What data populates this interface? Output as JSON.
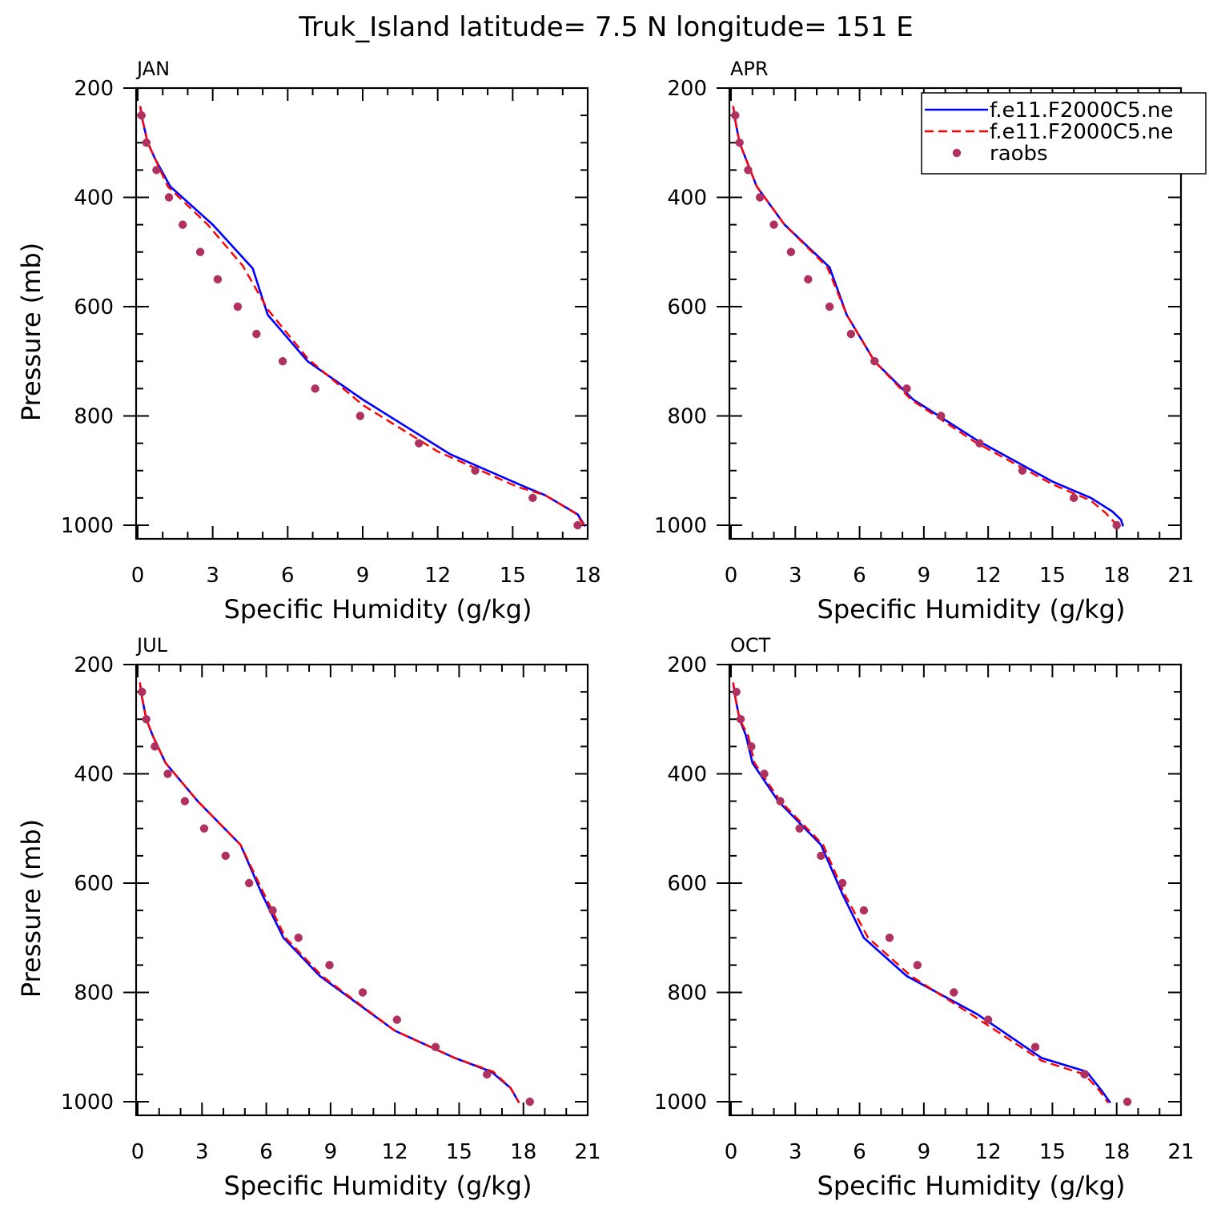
{
  "figure": {
    "title": "Truk_Island  latitude= 7.5 N longitude= 151 E"
  },
  "chart_data": [
    {
      "type": "line",
      "title": "JAN",
      "xlabel": "Specific Humidity (g/kg)",
      "ylabel": "Pressure (mb)",
      "xlim": [
        0,
        18
      ],
      "ylim": [
        1000,
        200
      ],
      "xticks": [
        0,
        3,
        6,
        9,
        12,
        15,
        18
      ],
      "yticks": [
        200,
        400,
        600,
        800,
        1000
      ],
      "y_reversed": true,
      "legend": false,
      "series": [
        {
          "name": "f.e11.F2000C5.ne",
          "style": "solid",
          "color": "#0000ff",
          "x": [
            0.1,
            0.2,
            0.4,
            0.7,
            1.3,
            3.0,
            4.6,
            5.2,
            6.8,
            9.0,
            12.5,
            15.5,
            16.3,
            17.6,
            17.9
          ],
          "y": [
            233,
            260,
            300,
            330,
            380,
            450,
            530,
            615,
            700,
            770,
            870,
            930,
            945,
            980,
            1002
          ]
        },
        {
          "name": "f.e11.F2000C5.ne",
          "style": "dashed",
          "color": "#ff0000",
          "x": [
            0.1,
            0.2,
            0.4,
            0.7,
            1.2,
            2.8,
            4.2,
            5.2,
            6.8,
            9.0,
            12.0,
            15.2,
            16.3,
            17.5,
            17.9
          ],
          "y": [
            233,
            260,
            300,
            330,
            380,
            450,
            525,
            605,
            695,
            780,
            865,
            930,
            945,
            978,
            1002
          ]
        },
        {
          "name": "raobs",
          "style": "markers",
          "color": "#b03060",
          "x": [
            0.15,
            0.35,
            0.75,
            1.25,
            1.8,
            2.5,
            3.2,
            4.0,
            4.75,
            5.8,
            7.1,
            8.9,
            11.25,
            13.5,
            15.8,
            17.6
          ],
          "y": [
            250,
            300,
            350,
            400,
            450,
            500,
            550,
            600,
            650,
            700,
            750,
            800,
            850,
            900,
            950,
            1000
          ]
        }
      ]
    },
    {
      "type": "line",
      "title": "APR",
      "xlabel": "Specific Humidity (g/kg)",
      "ylabel": "",
      "xlim": [
        0,
        21
      ],
      "ylim": [
        1000,
        200
      ],
      "xticks": [
        0,
        3,
        6,
        9,
        12,
        15,
        18,
        21
      ],
      "yticks": [
        200,
        400,
        600,
        800,
        1000
      ],
      "y_reversed": true,
      "legend": true,
      "legend_position": "top-right",
      "series": [
        {
          "name": "f.e11.F2000C5.ne",
          "style": "solid",
          "color": "#0000ff",
          "x": [
            0.1,
            0.2,
            0.4,
            0.7,
            1.2,
            2.5,
            4.6,
            5.4,
            6.7,
            8.5,
            11.5,
            15.0,
            16.8,
            17.8,
            18.2,
            18.3
          ],
          "y": [
            233,
            260,
            300,
            330,
            380,
            450,
            528,
            615,
            700,
            770,
            845,
            920,
            950,
            975,
            990,
            1002
          ]
        },
        {
          "name": "f.e11.F2000C5.ne",
          "style": "dashed",
          "color": "#ff0000",
          "x": [
            0.1,
            0.2,
            0.4,
            0.7,
            1.2,
            2.5,
            4.5,
            5.4,
            6.7,
            8.4,
            11.4,
            15.0,
            16.8,
            17.5,
            17.9,
            18.1
          ],
          "y": [
            233,
            260,
            300,
            330,
            380,
            450,
            528,
            615,
            700,
            770,
            848,
            925,
            955,
            978,
            995,
            1002
          ]
        },
        {
          "name": "raobs",
          "style": "markers",
          "color": "#b03060",
          "x": [
            0.2,
            0.4,
            0.8,
            1.35,
            2.0,
            2.8,
            3.6,
            4.6,
            5.6,
            6.7,
            8.2,
            9.8,
            11.6,
            13.6,
            16.0,
            18.0
          ],
          "y": [
            250,
            300,
            350,
            400,
            450,
            500,
            550,
            600,
            650,
            700,
            750,
            800,
            850,
            900,
            950,
            1000
          ]
        }
      ]
    },
    {
      "type": "line",
      "title": "JUL",
      "xlabel": "Specific Humidity (g/kg)",
      "ylabel": "Pressure (mb)",
      "xlim": [
        0,
        21
      ],
      "ylim": [
        1000,
        200
      ],
      "xticks": [
        0,
        3,
        6,
        9,
        12,
        15,
        18,
        21
      ],
      "yticks": [
        200,
        400,
        600,
        800,
        1000
      ],
      "y_reversed": true,
      "legend": false,
      "series": [
        {
          "name": "f.e11.F2000C5.ne",
          "style": "solid",
          "color": "#0000ff",
          "x": [
            0.1,
            0.2,
            0.4,
            0.7,
            1.3,
            2.8,
            4.8,
            5.8,
            6.8,
            8.5,
            12.0,
            14.8,
            16.5,
            17.4,
            17.8
          ],
          "y": [
            233,
            260,
            300,
            330,
            380,
            450,
            530,
            620,
            700,
            770,
            870,
            920,
            945,
            975,
            1002
          ]
        },
        {
          "name": "f.e11.F2000C5.ne",
          "style": "dashed",
          "color": "#ff0000",
          "x": [
            0.1,
            0.2,
            0.4,
            0.7,
            1.3,
            2.8,
            4.8,
            5.9,
            6.9,
            8.6,
            12.0,
            14.8,
            16.6,
            17.4,
            17.8
          ],
          "y": [
            233,
            260,
            300,
            330,
            380,
            450,
            530,
            620,
            700,
            770,
            870,
            920,
            945,
            975,
            1002
          ]
        },
        {
          "name": "raobs",
          "style": "markers",
          "color": "#b03060",
          "x": [
            0.2,
            0.4,
            0.8,
            1.4,
            2.2,
            3.1,
            4.1,
            5.2,
            6.3,
            7.5,
            8.95,
            10.5,
            12.1,
            13.9,
            16.3,
            18.3
          ],
          "y": [
            250,
            300,
            350,
            400,
            450,
            500,
            550,
            600,
            650,
            700,
            750,
            800,
            850,
            900,
            950,
            1000
          ]
        }
      ]
    },
    {
      "type": "line",
      "title": "OCT",
      "xlabel": "Specific Humidity (g/kg)",
      "ylabel": "",
      "xlim": [
        0,
        21
      ],
      "ylim": [
        1000,
        200
      ],
      "xticks": [
        0,
        3,
        6,
        9,
        12,
        15,
        18,
        21
      ],
      "yticks": [
        200,
        400,
        600,
        800,
        1000
      ],
      "y_reversed": true,
      "legend": false,
      "series": [
        {
          "name": "f.e11.F2000C5.ne",
          "style": "solid",
          "color": "#0000ff",
          "x": [
            0.1,
            0.2,
            0.4,
            0.7,
            1.0,
            2.2,
            4.2,
            5.2,
            6.2,
            8.2,
            11.5,
            14.5,
            16.6,
            17.3,
            17.7
          ],
          "y": [
            233,
            260,
            300,
            330,
            380,
            450,
            530,
            620,
            700,
            770,
            840,
            920,
            945,
            980,
            1002
          ]
        },
        {
          "name": "f.e11.F2000C5.ne",
          "style": "dashed",
          "color": "#ff0000",
          "x": [
            0.1,
            0.2,
            0.4,
            0.8,
            1.1,
            2.3,
            4.3,
            5.3,
            6.4,
            8.4,
            11.4,
            14.5,
            16.5,
            17.2,
            17.6
          ],
          "y": [
            233,
            260,
            300,
            330,
            380,
            450,
            530,
            620,
            700,
            770,
            845,
            925,
            950,
            980,
            1002
          ]
        },
        {
          "name": "raobs",
          "style": "markers",
          "color": "#b03060",
          "x": [
            0.25,
            0.45,
            0.95,
            1.55,
            2.3,
            3.2,
            4.2,
            5.2,
            6.2,
            7.4,
            8.7,
            10.4,
            12.0,
            14.2,
            16.5,
            18.5
          ],
          "y": [
            250,
            300,
            350,
            400,
            450,
            500,
            550,
            600,
            650,
            700,
            750,
            800,
            850,
            900,
            950,
            1000
          ]
        }
      ]
    }
  ],
  "legend": {
    "entries": [
      {
        "label": "f.e11.F2000C5.ne",
        "style": "solid",
        "color": "#0000ff"
      },
      {
        "label": "f.e11.F2000C5.ne",
        "style": "dashed",
        "color": "#ff0000"
      },
      {
        "label": "raobs",
        "style": "markers",
        "color": "#b03060"
      }
    ]
  }
}
